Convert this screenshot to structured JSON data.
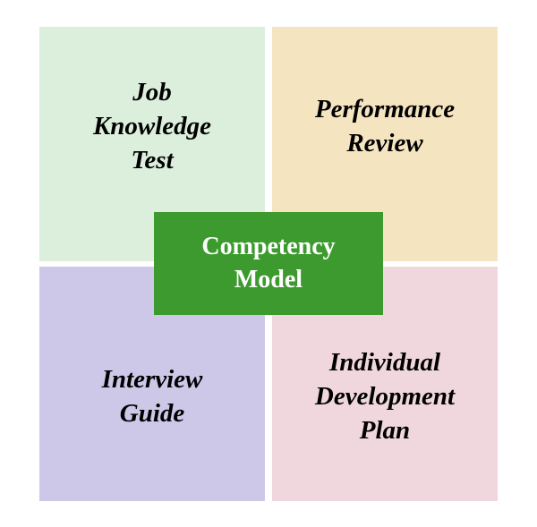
{
  "diagram": {
    "type": "infographic",
    "background_color": "#ffffff",
    "quadrant_gap": 8,
    "quadrants": {
      "top_left": {
        "text": "Job\nKnowledge\nTest",
        "background_color": "#dceedc",
        "text_color": "#000000",
        "font_size": 29,
        "font_style": "italic",
        "font_weight": "bold"
      },
      "top_right": {
        "text": "Performance\nReview",
        "background_color": "#f5e4c0",
        "text_color": "#000000",
        "font_size": 29,
        "font_style": "italic",
        "font_weight": "bold"
      },
      "bottom_left": {
        "text": "Interview\nGuide",
        "background_color": "#cdc8e8",
        "text_color": "#000000",
        "font_size": 29,
        "font_style": "italic",
        "font_weight": "bold"
      },
      "bottom_right": {
        "text": "Individual\nDevelopment\nPlan",
        "background_color": "#f0d7de",
        "text_color": "#000000",
        "font_size": 29,
        "font_style": "italic",
        "font_weight": "bold"
      }
    },
    "center": {
      "text": "Competency\nModel",
      "background_color": "#3c9a2e",
      "text_color": "#ffffff",
      "font_size": 28,
      "font_weight": "bold"
    }
  }
}
